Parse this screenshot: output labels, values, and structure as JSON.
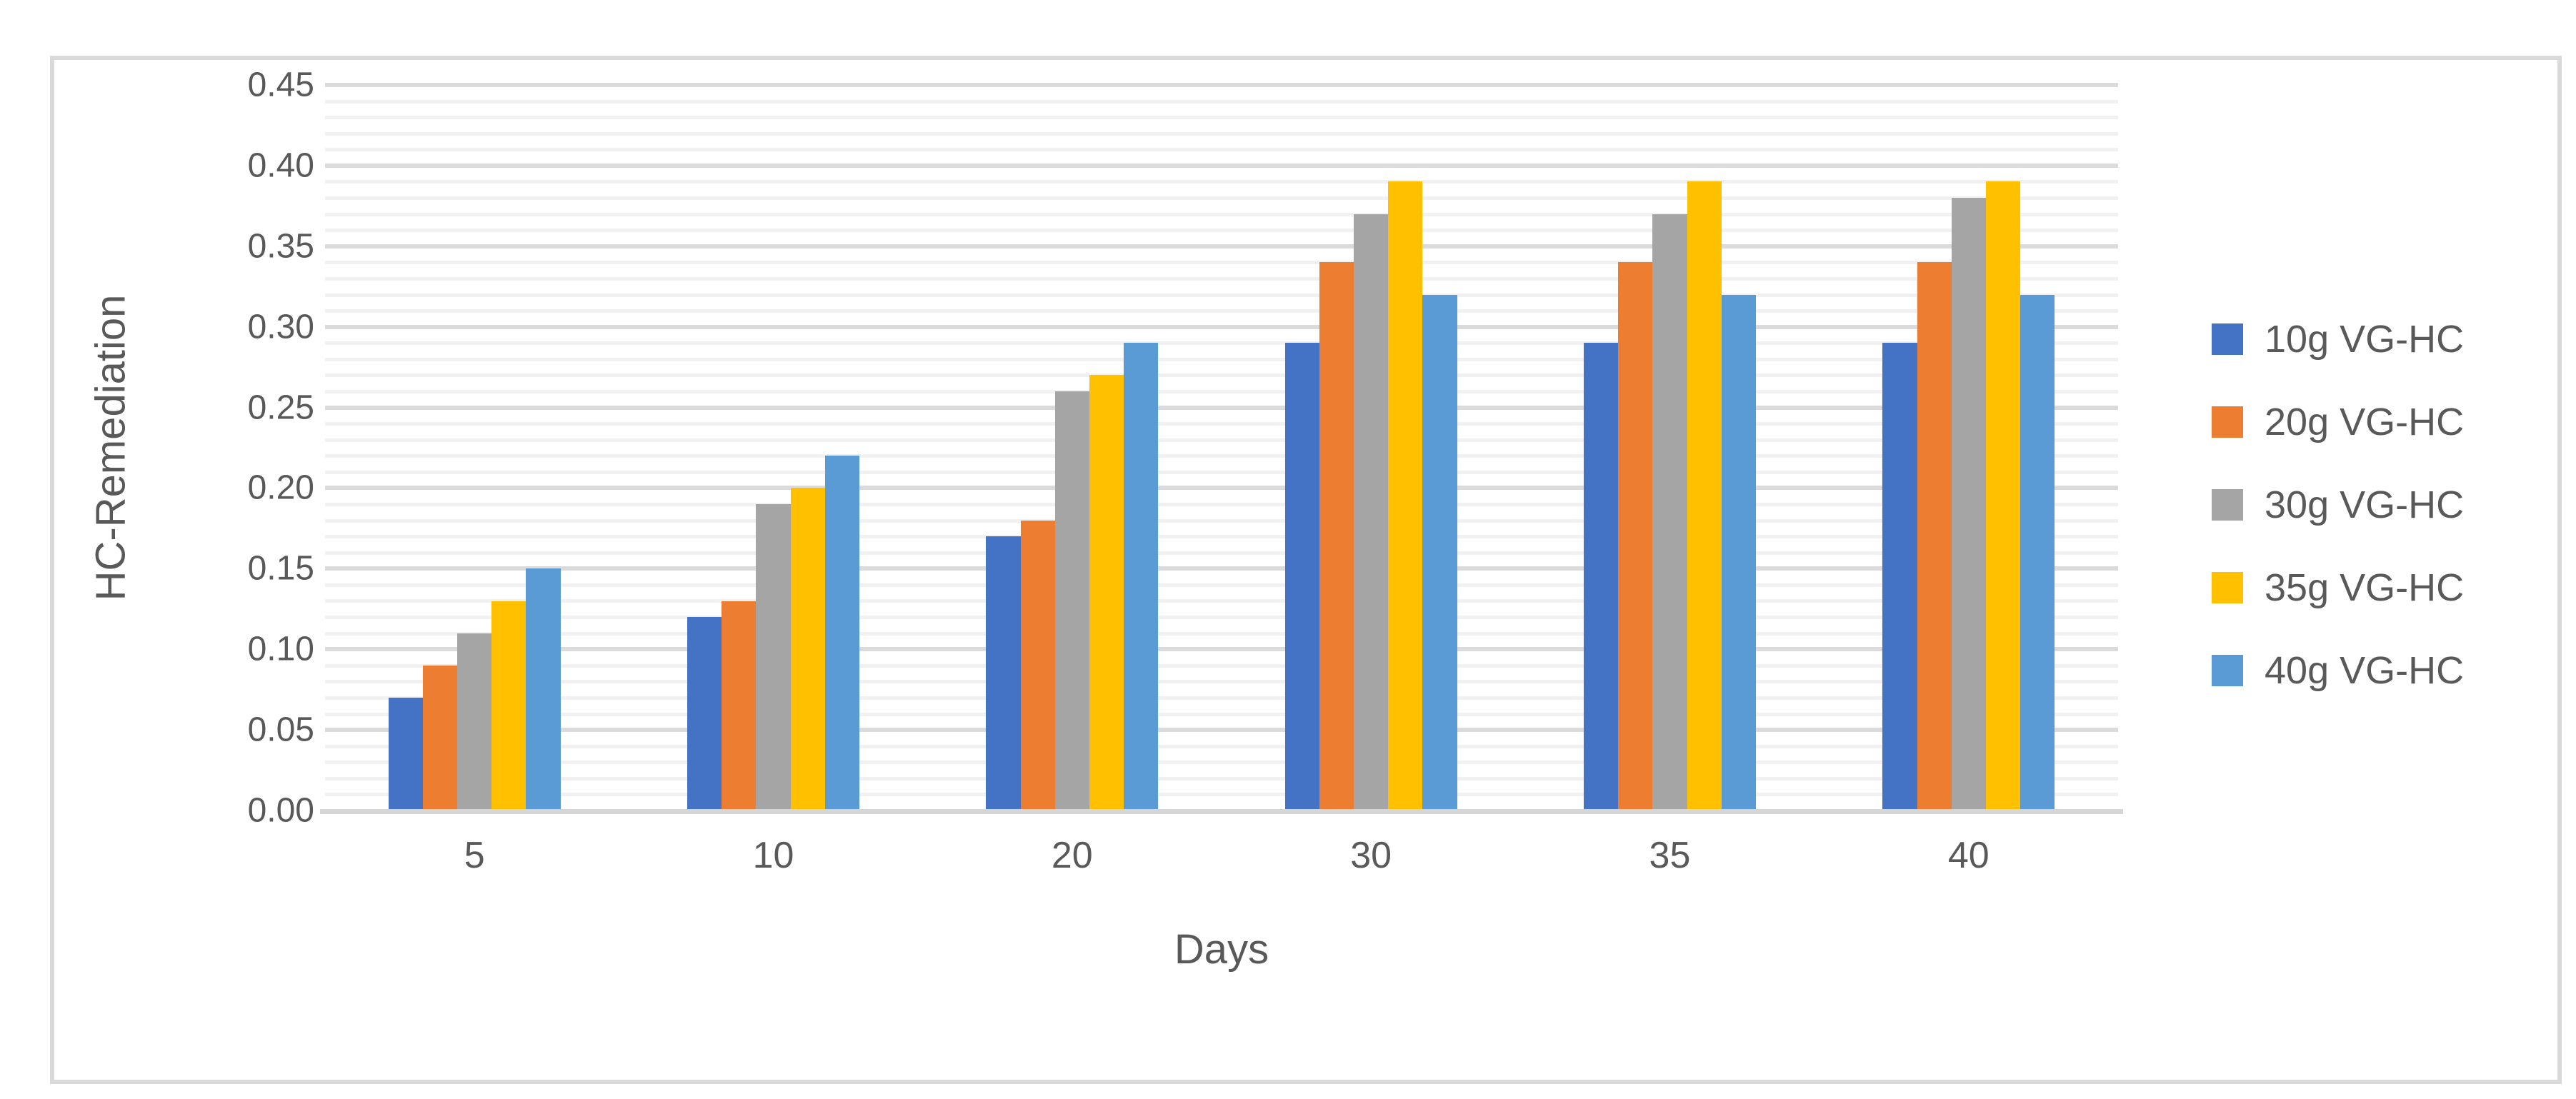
{
  "figure": {
    "frame_border_color": "#D9D9D9",
    "background_color": "#FFFFFF",
    "text_color": "#595959",
    "major_gridline_color": "#DBDBDB",
    "minor_gridline_color": "#F1F1F1",
    "axis_line_color": "#D6D6D6"
  },
  "chart_data": {
    "type": "bar",
    "title": "",
    "xlabel": "Days",
    "ylabel": "HC-Remediation",
    "categories": [
      "5",
      "10",
      "20",
      "30",
      "35",
      "40"
    ],
    "series": [
      {
        "name": "10g VG-HC",
        "color": "#4472C4",
        "values": [
          0.07,
          0.12,
          0.17,
          0.29,
          0.29,
          0.29
        ]
      },
      {
        "name": "20g VG-HC",
        "color": "#ED7D31",
        "values": [
          0.09,
          0.13,
          0.18,
          0.34,
          0.34,
          0.34
        ]
      },
      {
        "name": "30g VG-HC",
        "color": "#A5A5A5",
        "values": [
          0.11,
          0.19,
          0.26,
          0.37,
          0.37,
          0.38
        ]
      },
      {
        "name": "35g VG-HC",
        "color": "#FFC000",
        "values": [
          0.13,
          0.2,
          0.27,
          0.39,
          0.39,
          0.39
        ]
      },
      {
        "name": "40g VG-HC",
        "color": "#5B9BD5",
        "values": [
          0.15,
          0.22,
          0.29,
          0.32,
          0.32,
          0.32
        ]
      }
    ],
    "ylim": [
      0,
      0.45
    ],
    "y_major_step": 0.05,
    "y_minor_step": 0.01,
    "y_tick_labels": [
      "0.00",
      "0.05",
      "0.10",
      "0.15",
      "0.20",
      "0.25",
      "0.30",
      "0.35",
      "0.40",
      "0.45"
    ],
    "grid": "on",
    "legend_position": "right"
  }
}
